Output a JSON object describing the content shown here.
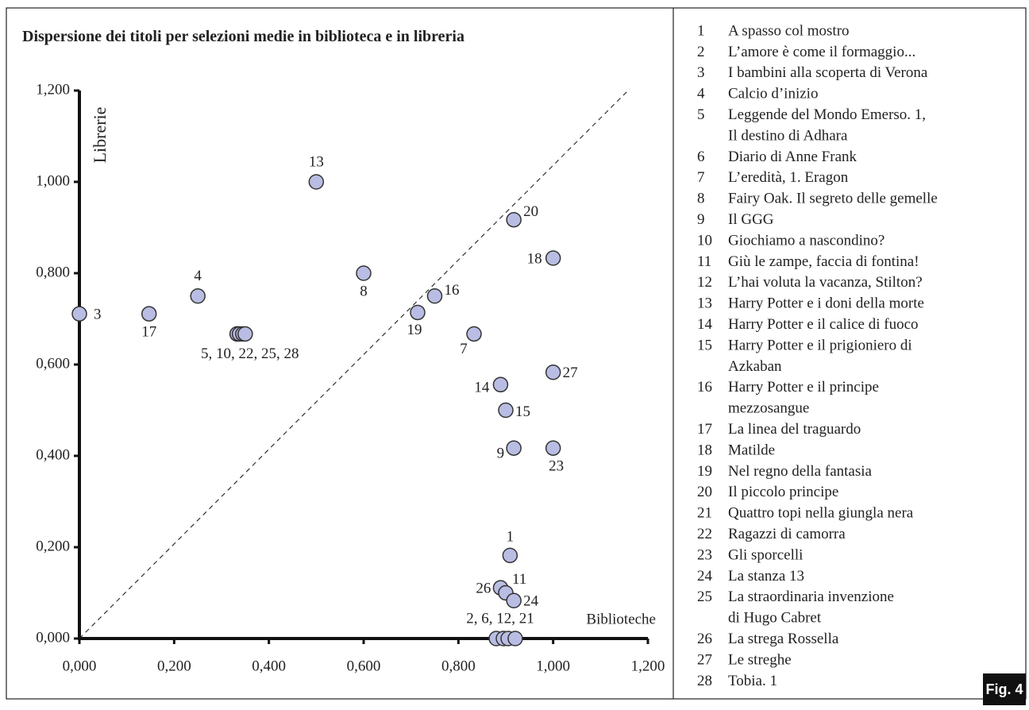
{
  "chart_data": {
    "type": "scatter",
    "title": "Dispersione dei titoli per selezioni medie in biblioteca e in libreria",
    "x_label": "Biblioteche",
    "y_label": "Librerie",
    "color": "#b9bde3",
    "xlim": [
      0,
      1.2
    ],
    "ylim": [
      0,
      1.2
    ],
    "xticks": [
      {
        "value": 0,
        "label": "0,000"
      },
      {
        "value": 0.2,
        "label": "0,200"
      },
      {
        "value": 0.4,
        "label": "0,400"
      },
      {
        "value": 0.6,
        "label": "0,600"
      },
      {
        "value": 0.8,
        "label": "0,800"
      },
      {
        "value": 1.0,
        "label": "1,000"
      },
      {
        "value": 1.2,
        "label": "1,200"
      }
    ],
    "yticks": [
      {
        "value": 0,
        "label": "0,000"
      },
      {
        "value": 0.2,
        "label": "0,200"
      },
      {
        "value": 0.4,
        "label": "0,400"
      },
      {
        "value": 0.6,
        "label": "0,600"
      },
      {
        "value": 0.8,
        "label": "0,800"
      },
      {
        "value": 1.0,
        "label": "1,000"
      },
      {
        "value": 1.2,
        "label": "1,200"
      }
    ],
    "points": [
      {
        "label": "3",
        "x": [
          0
        ],
        "y": [
          0.711
        ]
      },
      {
        "label": "17",
        "x": [
          0.147
        ],
        "y": [
          0.711
        ]
      },
      {
        "label": "4",
        "x": [
          0.25
        ],
        "y": [
          0.75
        ]
      },
      {
        "label": "5, 10, 22, 25, 28",
        "x": [
          0.333,
          0.333,
          0.338,
          0.345,
          0.35
        ],
        "y": [
          0.667,
          0.667,
          0.667,
          0.667,
          0.667
        ]
      },
      {
        "label": "13",
        "x": [
          0.5
        ],
        "y": [
          1.0
        ]
      },
      {
        "label": "8",
        "x": [
          0.6
        ],
        "y": [
          0.8
        ]
      },
      {
        "label": "19",
        "x": [
          0.714
        ],
        "y": [
          0.714
        ]
      },
      {
        "label": "16",
        "x": [
          0.75
        ],
        "y": [
          0.75
        ]
      },
      {
        "label": "7",
        "x": [
          0.833
        ],
        "y": [
          0.667
        ]
      },
      {
        "label": "20",
        "x": [
          0.917
        ],
        "y": [
          0.917
        ]
      },
      {
        "label": "18",
        "x": [
          1.0
        ],
        "y": [
          0.833
        ]
      },
      {
        "label": "27",
        "x": [
          1.0
        ],
        "y": [
          0.583
        ]
      },
      {
        "label": "14",
        "x": [
          0.889
        ],
        "y": [
          0.556
        ]
      },
      {
        "label": "15",
        "x": [
          0.9
        ],
        "y": [
          0.5
        ]
      },
      {
        "label": "9",
        "x": [
          0.917
        ],
        "y": [
          0.417
        ]
      },
      {
        "label": "23",
        "x": [
          1.0
        ],
        "y": [
          0.417
        ]
      },
      {
        "label": "1",
        "x": [
          0.909
        ],
        "y": [
          0.182
        ]
      },
      {
        "label": "26",
        "x": [
          0.889
        ],
        "y": [
          0.111
        ]
      },
      {
        "label": "11",
        "x": [
          0.9
        ],
        "y": [
          0.1
        ]
      },
      {
        "label": "24",
        "x": [
          0.917
        ],
        "y": [
          0.083
        ]
      },
      {
        "label": "2, 6, 12, 21",
        "x": [
          0.88,
          0.895,
          0.905,
          0.92
        ],
        "y": [
          0,
          0,
          0,
          0
        ]
      }
    ],
    "legend": [
      {
        "n": "1",
        "lines": [
          "A spasso col mostro"
        ]
      },
      {
        "n": "2",
        "lines": [
          "L’amore è come il formaggio..."
        ]
      },
      {
        "n": "3",
        "lines": [
          "I bambini alla scoperta di Verona"
        ]
      },
      {
        "n": "4",
        "lines": [
          "Calcio d’inizio"
        ]
      },
      {
        "n": "5",
        "lines": [
          "Leggende del Mondo Emerso. 1,",
          "Il destino di Adhara"
        ]
      },
      {
        "n": "6",
        "lines": [
          "Diario di Anne Frank"
        ]
      },
      {
        "n": "7",
        "lines": [
          "L’eredità, 1. Eragon"
        ]
      },
      {
        "n": "8",
        "lines": [
          "Fairy Oak. Il segreto delle gemelle"
        ]
      },
      {
        "n": "9",
        "lines": [
          "Il GGG"
        ]
      },
      {
        "n": "10",
        "lines": [
          "Giochiamo a nascondino?"
        ]
      },
      {
        "n": "11",
        "lines": [
          "Giù le zampe, faccia di fontina!"
        ]
      },
      {
        "n": "12",
        "lines": [
          "L’hai voluta la vacanza, Stilton?"
        ]
      },
      {
        "n": "13",
        "lines": [
          "Harry Potter e i doni della morte"
        ]
      },
      {
        "n": "14",
        "lines": [
          "Harry Potter e il calice di fuoco"
        ]
      },
      {
        "n": "15",
        "lines": [
          "Harry Potter e il prigioniero di",
          "Azkaban"
        ]
      },
      {
        "n": "16",
        "lines": [
          "Harry Potter e il principe",
          "mezzosangue"
        ]
      },
      {
        "n": "17",
        "lines": [
          "La linea del traguardo"
        ]
      },
      {
        "n": "18",
        "lines": [
          "Matilde"
        ]
      },
      {
        "n": "19",
        "lines": [
          "Nel regno della fantasia"
        ]
      },
      {
        "n": "20",
        "lines": [
          "Il piccolo principe"
        ]
      },
      {
        "n": "21",
        "lines": [
          "Quattro topi nella giungla nera"
        ]
      },
      {
        "n": "22",
        "lines": [
          "Ragazzi di camorra"
        ]
      },
      {
        "n": "23",
        "lines": [
          "Gli sporcelli"
        ]
      },
      {
        "n": "24",
        "lines": [
          "La stanza 13"
        ]
      },
      {
        "n": "25",
        "lines": [
          "La straordinaria invenzione",
          "di Hugo Cabret"
        ]
      },
      {
        "n": "26",
        "lines": [
          "La strega Rossella"
        ]
      },
      {
        "n": "27",
        "lines": [
          "Le streghe"
        ]
      },
      {
        "n": "28",
        "lines": [
          "Tobia. 1"
        ]
      }
    ],
    "figure_label": "Fig. 4"
  }
}
